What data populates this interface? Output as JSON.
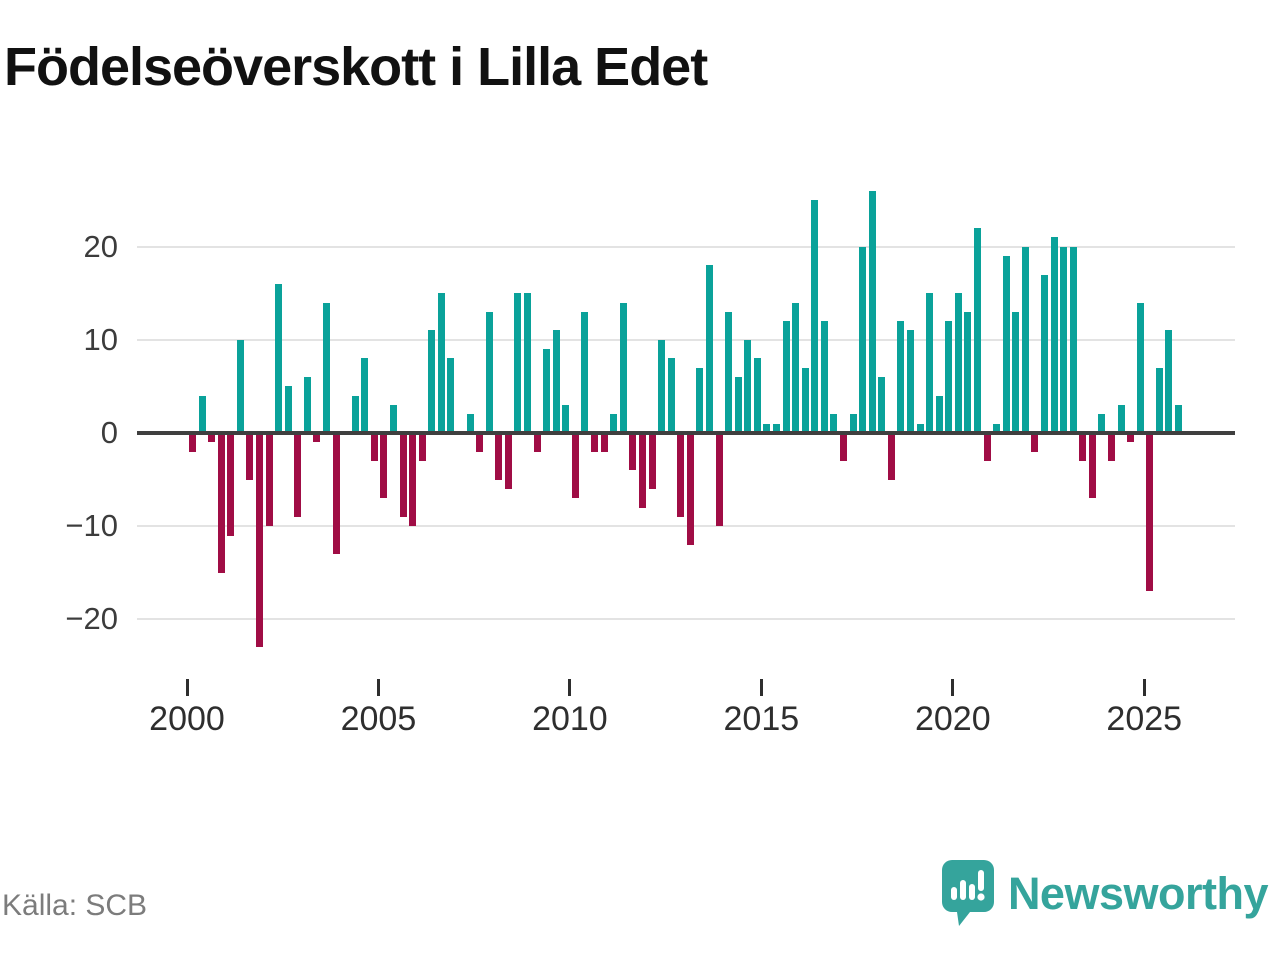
{
  "title": "Födelseöverskott i Lilla Edet",
  "source": "Källa: SCB",
  "brand": {
    "name": "Newsworthy"
  },
  "colors": {
    "positive": "#0aa29a",
    "negative": "#a00d45",
    "axis": "#3f3f3f",
    "grid": "#e3e3e3",
    "tick": "#2e2e2e",
    "axis_label": "#3c3c3c",
    "title_text": "#111111",
    "source_text": "#7c7c7c",
    "brand_teal": "#35a49c",
    "background": "#ffffff"
  },
  "chart_data": {
    "type": "bar",
    "title": "Födelseöverskott i Lilla Edet",
    "xlabel": "",
    "ylabel": "",
    "x_unit": "quarter",
    "periodicity": "quarterly",
    "x_start": "2000Q1",
    "x_end": "2025Q4",
    "ylim": [
      -25,
      28
    ],
    "yticks": [
      20,
      10,
      0,
      -10,
      -20
    ],
    "xtick_years": [
      2000,
      2005,
      2010,
      2015,
      2020,
      2025
    ],
    "grid": "horizontal",
    "legend": "none",
    "positive_color": "#0aa29a",
    "negative_color": "#a00d45",
    "series": [
      {
        "year": 2000,
        "quarters": [
          -2,
          4,
          -1,
          -15
        ]
      },
      {
        "year": 2001,
        "quarters": [
          -11,
          10,
          -5,
          -23
        ]
      },
      {
        "year": 2002,
        "quarters": [
          -10,
          16,
          5,
          -9
        ]
      },
      {
        "year": 2003,
        "quarters": [
          6,
          -1,
          14,
          -13
        ]
      },
      {
        "year": 2004,
        "quarters": [
          0,
          4,
          8,
          -3
        ]
      },
      {
        "year": 2005,
        "quarters": [
          -7,
          3,
          -9,
          -10
        ]
      },
      {
        "year": 2006,
        "quarters": [
          -3,
          11,
          15,
          8
        ]
      },
      {
        "year": 2007,
        "quarters": [
          0,
          2,
          -2,
          13
        ]
      },
      {
        "year": 2008,
        "quarters": [
          -5,
          -6,
          15,
          15
        ]
      },
      {
        "year": 2009,
        "quarters": [
          -2,
          9,
          11,
          3
        ]
      },
      {
        "year": 2010,
        "quarters": [
          -7,
          13,
          -2,
          -2
        ]
      },
      {
        "year": 2011,
        "quarters": [
          2,
          14,
          -4,
          -8
        ]
      },
      {
        "year": 2012,
        "quarters": [
          -6,
          10,
          8,
          -9
        ]
      },
      {
        "year": 2013,
        "quarters": [
          -12,
          7,
          18,
          -10
        ]
      },
      {
        "year": 2014,
        "quarters": [
          13,
          6,
          10,
          8
        ]
      },
      {
        "year": 2015,
        "quarters": [
          1,
          1,
          12,
          14
        ]
      },
      {
        "year": 2016,
        "quarters": [
          7,
          25,
          12,
          2
        ]
      },
      {
        "year": 2017,
        "quarters": [
          -3,
          2,
          20,
          26
        ]
      },
      {
        "year": 2018,
        "quarters": [
          6,
          -5,
          12,
          11
        ]
      },
      {
        "year": 2019,
        "quarters": [
          1,
          15,
          4,
          12
        ]
      },
      {
        "year": 2020,
        "quarters": [
          15,
          13,
          22,
          -3
        ]
      },
      {
        "year": 2021,
        "quarters": [
          1,
          19,
          13,
          20
        ]
      },
      {
        "year": 2022,
        "quarters": [
          -2,
          17,
          21,
          20
        ]
      },
      {
        "year": 2023,
        "quarters": [
          20,
          -3,
          -7,
          2
        ]
      },
      {
        "year": 2024,
        "quarters": [
          -3,
          3,
          -1,
          14
        ]
      },
      {
        "year": 2025,
        "quarters": [
          -17,
          7,
          11,
          3
        ]
      }
    ]
  }
}
